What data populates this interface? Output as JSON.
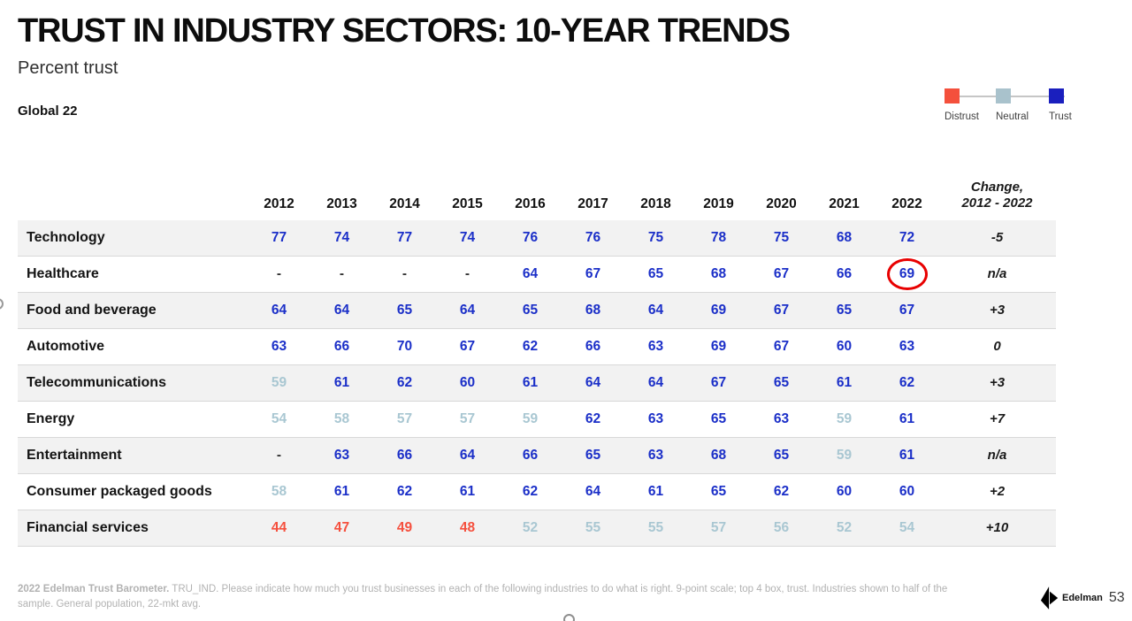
{
  "page": {
    "title": "TRUST IN INDUSTRY SECTORS: 10-YEAR TRENDS",
    "subtitle": "Percent trust",
    "scope": "Global 22",
    "page_number": "53",
    "brand": "Edelman"
  },
  "legend": {
    "items": [
      {
        "label": "Distrust",
        "color": "#f4503c"
      },
      {
        "label": "Neutral",
        "color": "#a9c2cc"
      },
      {
        "label": "Trust",
        "color": "#1a1fbe"
      }
    ]
  },
  "colors": {
    "trust_value_text": "#1b2fc8",
    "neutral_value_text": "#a9c7d2",
    "distrust_value_text": "#f5503e",
    "row_stripe": "#f2f2f2",
    "annotation_circle": "#e80000"
  },
  "chart_data": {
    "type": "table",
    "title": "TRUST IN INDUSTRY SECTORS: 10-YEAR TRENDS",
    "subtitle": "Percent trust",
    "scope": "Global 22",
    "legend": [
      "Distrust",
      "Neutral",
      "Trust"
    ],
    "columns": [
      "2012",
      "2013",
      "2014",
      "2015",
      "2016",
      "2017",
      "2018",
      "2019",
      "2020",
      "2021",
      "2022"
    ],
    "change_column": "Change,\n2012 - 2022",
    "rows": [
      {
        "label": "Technology",
        "values": [
          "77",
          "74",
          "77",
          "74",
          "76",
          "76",
          "75",
          "78",
          "75",
          "68",
          "72"
        ],
        "tones": [
          "trust",
          "trust",
          "trust",
          "trust",
          "trust",
          "trust",
          "trust",
          "trust",
          "trust",
          "trust",
          "trust"
        ],
        "change": "-5",
        "circled": null
      },
      {
        "label": "Healthcare",
        "values": [
          "-",
          "-",
          "-",
          "-",
          "64",
          "67",
          "65",
          "68",
          "67",
          "66",
          "69"
        ],
        "tones": [
          "dash",
          "dash",
          "dash",
          "dash",
          "trust",
          "trust",
          "trust",
          "trust",
          "trust",
          "trust",
          "trust"
        ],
        "change": "n/a",
        "circled": 10
      },
      {
        "label": "Food and beverage",
        "values": [
          "64",
          "64",
          "65",
          "64",
          "65",
          "68",
          "64",
          "69",
          "67",
          "65",
          "67"
        ],
        "tones": [
          "trust",
          "trust",
          "trust",
          "trust",
          "trust",
          "trust",
          "trust",
          "trust",
          "trust",
          "trust",
          "trust"
        ],
        "change": "+3",
        "circled": null
      },
      {
        "label": "Automotive",
        "values": [
          "63",
          "66",
          "70",
          "67",
          "62",
          "66",
          "63",
          "69",
          "67",
          "60",
          "63"
        ],
        "tones": [
          "trust",
          "trust",
          "trust",
          "trust",
          "trust",
          "trust",
          "trust",
          "trust",
          "trust",
          "trust",
          "trust"
        ],
        "change": "0",
        "circled": null
      },
      {
        "label": "Telecommunications",
        "values": [
          "59",
          "61",
          "62",
          "60",
          "61",
          "64",
          "64",
          "67",
          "65",
          "61",
          "62"
        ],
        "tones": [
          "neutral",
          "trust",
          "trust",
          "trust",
          "trust",
          "trust",
          "trust",
          "trust",
          "trust",
          "trust",
          "trust"
        ],
        "change": "+3",
        "circled": null
      },
      {
        "label": "Energy",
        "values": [
          "54",
          "58",
          "57",
          "57",
          "59",
          "62",
          "63",
          "65",
          "63",
          "59",
          "61"
        ],
        "tones": [
          "neutral",
          "neutral",
          "neutral",
          "neutral",
          "neutral",
          "trust",
          "trust",
          "trust",
          "trust",
          "neutral",
          "trust"
        ],
        "change": "+7",
        "circled": null
      },
      {
        "label": "Entertainment",
        "values": [
          "-",
          "63",
          "66",
          "64",
          "66",
          "65",
          "63",
          "68",
          "65",
          "59",
          "61"
        ],
        "tones": [
          "dash",
          "trust",
          "trust",
          "trust",
          "trust",
          "trust",
          "trust",
          "trust",
          "trust",
          "neutral",
          "trust"
        ],
        "change": "n/a",
        "circled": null
      },
      {
        "label": "Consumer packaged goods",
        "values": [
          "58",
          "61",
          "62",
          "61",
          "62",
          "64",
          "61",
          "65",
          "62",
          "60",
          "60"
        ],
        "tones": [
          "neutral",
          "trust",
          "trust",
          "trust",
          "trust",
          "trust",
          "trust",
          "trust",
          "trust",
          "trust",
          "trust"
        ],
        "change": "+2",
        "circled": null
      },
      {
        "label": "Financial services",
        "values": [
          "44",
          "47",
          "49",
          "48",
          "52",
          "55",
          "55",
          "57",
          "56",
          "52",
          "54"
        ],
        "tones": [
          "distrust",
          "distrust",
          "distrust",
          "distrust",
          "neutral",
          "neutral",
          "neutral",
          "neutral",
          "neutral",
          "neutral",
          "neutral"
        ],
        "change": "+10",
        "circled": null
      }
    ]
  },
  "footnote": {
    "bold": "2022 Edelman Trust Barometer.",
    "text": " TRU_IND. Please indicate how much you trust businesses in each of the following industries to do what is right. 9-point scale; top 4 box, trust. Industries shown to half of the sample. General population, 22-mkt avg."
  }
}
